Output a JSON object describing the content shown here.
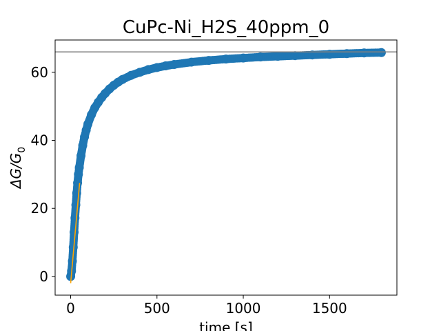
{
  "chart_data": {
    "type": "scatter",
    "title": "CuPc-Ni_H2S_40ppm_0",
    "xlabel": "time [s]",
    "ylabel_main": "ΔG/G",
    "ylabel_sub": "0",
    "xlim": [
      -90,
      1890
    ],
    "ylim": [
      -5.5,
      69.5
    ],
    "xticks": [
      0,
      500,
      1000,
      1500
    ],
    "yticks": [
      0,
      20,
      40,
      60
    ],
    "grid": false,
    "series": [
      {
        "kind": "scatter",
        "color": "#1f77b4",
        "x": [
          0,
          5,
          10,
          15,
          20,
          25,
          30,
          35,
          40,
          45,
          50,
          60,
          70,
          80,
          90,
          100,
          120,
          140,
          160,
          180,
          200,
          225,
          250,
          275,
          300,
          350,
          400,
          450,
          500,
          550,
          600,
          700,
          800,
          900,
          1000,
          1100,
          1200,
          1300,
          1400,
          1500,
          1600,
          1700,
          1800
        ],
        "y": [
          0.0,
          1.6,
          4.5,
          8.6,
          13.0,
          17.2,
          21.0,
          24.5,
          27.5,
          30.0,
          32.0,
          35.5,
          38.5,
          41.0,
          43.0,
          44.8,
          47.5,
          49.6,
          51.2,
          52.6,
          53.8,
          55.1,
          56.2,
          57.1,
          57.9,
          59.1,
          60.0,
          60.8,
          61.4,
          61.9,
          62.3,
          63.0,
          63.5,
          63.9,
          64.2,
          64.5,
          64.7,
          64.9,
          65.1,
          65.3,
          65.5,
          65.7,
          65.8
        ]
      },
      {
        "kind": "line",
        "color": "#ffa500",
        "x": [
          0,
          52
        ],
        "y": [
          -2,
          27.5
        ]
      },
      {
        "kind": "hline",
        "color": "#808080",
        "y": 66.0
      }
    ]
  }
}
